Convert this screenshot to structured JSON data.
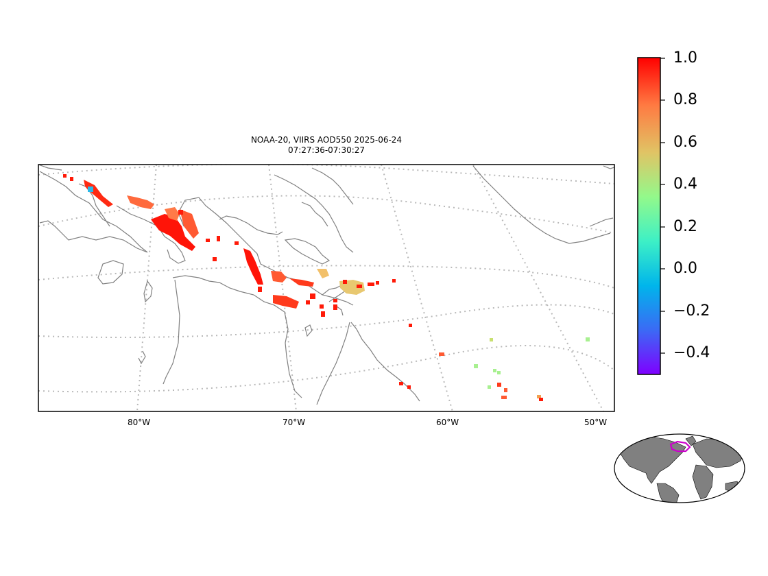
{
  "title": {
    "line1": "NOAA-20, VIIRS AOD550 2025-06-24",
    "line2": "07:27:36-07:30:27"
  },
  "map": {
    "lon_labels": [
      "80°W",
      "70°W",
      "60°W",
      "50°W"
    ],
    "coastline_color": "#808080",
    "gridline_color": "#b0b0b0"
  },
  "colorbar": {
    "colormap": "rainbow",
    "min": -0.5,
    "max": 1.0,
    "tick_labels": [
      "1.0",
      "0.8",
      "0.6",
      "0.4",
      "0.2",
      "0.0",
      "−0.2",
      "−0.4"
    ],
    "tick_values": [
      1.0,
      0.8,
      0.6,
      0.4,
      0.2,
      0.0,
      -0.2,
      -0.4
    ]
  },
  "inset": {
    "type": "world-locator",
    "land_color": "#808080",
    "highlight_color": "#cc00cc"
  }
}
